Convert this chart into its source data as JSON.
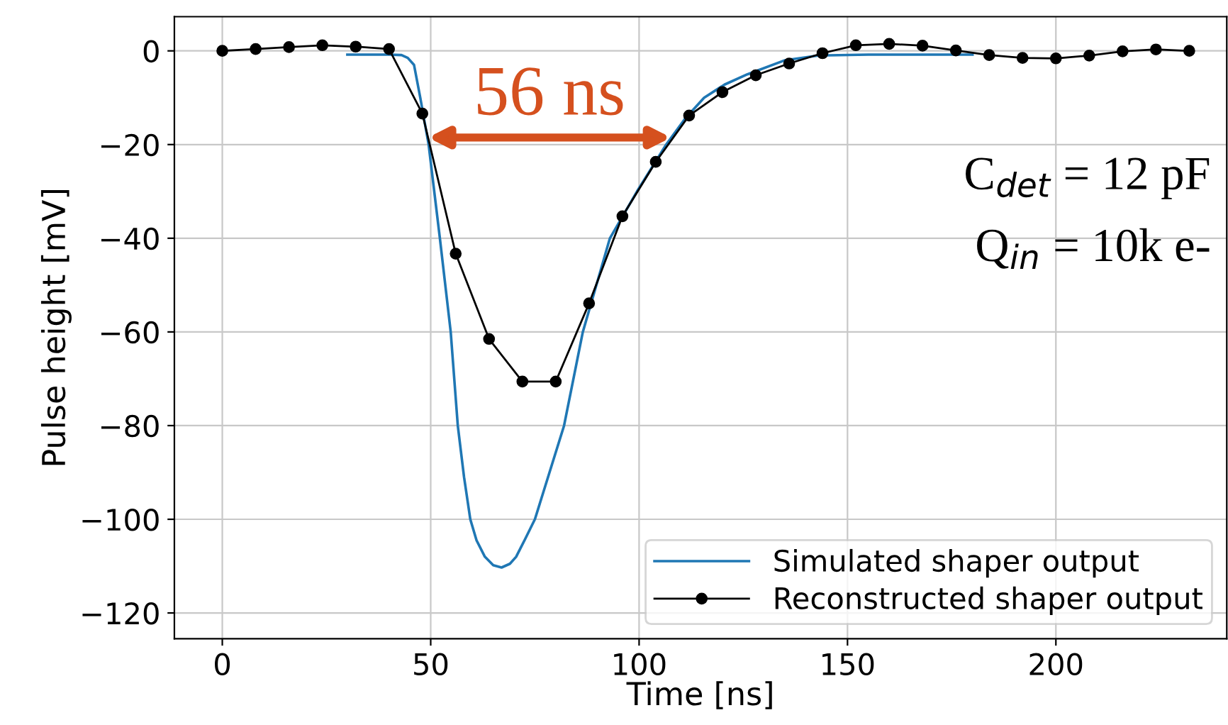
{
  "chart_data": {
    "type": "line",
    "xlabel": "Time [ns]",
    "ylabel": "Pulse height [mV]",
    "xlim": [
      -11.5,
      241
    ],
    "ylim": [
      -125.5,
      7.3
    ],
    "xticks": [
      0,
      50,
      100,
      150,
      200
    ],
    "yticks": [
      0,
      -20,
      -40,
      -60,
      -80,
      -100,
      -120
    ],
    "grid": true,
    "legend": "bottom right",
    "series": [
      {
        "name": "Simulated shaper output",
        "color": "#1f77b4",
        "marker": "none",
        "x": [
          30,
          40,
          43,
          44.5,
          46,
          47.5,
          49.5,
          52.2,
          54.8,
          56.5,
          58,
          59.5,
          61,
          63,
          65,
          67,
          69,
          70.5,
          72.5,
          75,
          78.5,
          82,
          86.5,
          93,
          99.5,
          106.5,
          111,
          115.6,
          120.5,
          126,
          135,
          143,
          155,
          180
        ],
        "values": [
          -0.8,
          -0.8,
          -0.9,
          -1.5,
          -3,
          -10,
          -20,
          -40,
          -60,
          -80,
          -91,
          -100,
          -104.5,
          -108,
          -109.8,
          -110.3,
          -109.5,
          -108,
          -104.5,
          -100,
          -90,
          -80,
          -60,
          -40,
          -30,
          -20,
          -14.5,
          -10,
          -7.2,
          -5,
          -2,
          -1,
          -0.8,
          -0.8
        ]
      },
      {
        "name": "Reconstructed shaper output",
        "color": "#000000",
        "marker": "circle",
        "x": [
          0,
          8,
          16,
          24,
          32,
          40,
          48,
          56,
          64,
          72,
          80,
          88,
          96,
          104,
          112,
          120,
          128,
          136,
          144,
          152,
          160,
          168,
          176,
          184,
          192,
          200,
          208,
          216,
          224,
          232
        ],
        "values": [
          0,
          0.4,
          0.8,
          1.2,
          0.9,
          0.4,
          -13.4,
          -43.3,
          -61.5,
          -70.6,
          -70.6,
          -53.9,
          -35.3,
          -23.7,
          -13.8,
          -8.8,
          -5.2,
          -2.7,
          -0.5,
          1.2,
          1.5,
          1.1,
          0.1,
          -0.9,
          -1.5,
          -1.6,
          -1.0,
          -0.1,
          0.3,
          0
        ]
      }
    ],
    "annotations": [
      {
        "text": "56 ns",
        "x": 49.3,
        "y": -18.5
      },
      "C$_{det}$ = 12 pF",
      "Q$_{in}$ = 10k e-"
    ]
  }
}
